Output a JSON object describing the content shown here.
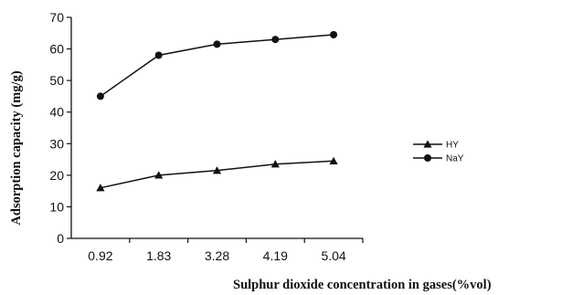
{
  "chart_data": {
    "type": "line",
    "title": "",
    "xlabel": "Sulphur dioxide concentration in gases(%vol)",
    "ylabel": "Adsorption capacity (mg/g)",
    "categories": [
      "0.92",
      "1.83",
      "3.28",
      "4.19",
      "5.04"
    ],
    "ylim": [
      0,
      70
    ],
    "yticks": [
      "0",
      "10",
      "20",
      "30",
      "40",
      "50",
      "60",
      "70"
    ],
    "grid": false,
    "legend_position": "right",
    "series": [
      {
        "name": "HY",
        "marker": "triangle",
        "values": [
          16,
          20,
          21.5,
          23.5,
          24.5
        ]
      },
      {
        "name": "NaY",
        "marker": "circle",
        "values": [
          45,
          58,
          61.5,
          63,
          64.5
        ]
      }
    ],
    "colors": {
      "line": "#111111",
      "axis": "#111111",
      "background": "#ffffff"
    }
  }
}
